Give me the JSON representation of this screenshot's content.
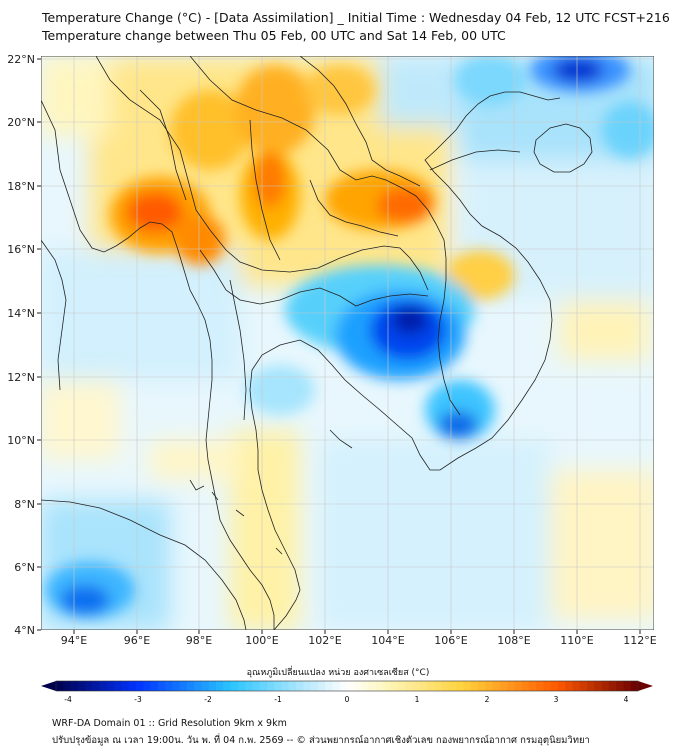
{
  "title_line1": "Temperature Change (°C) - [Data Assimilation] _ Initial Time : Wednesday 04 Feb, 12 UTC FCST+216",
  "title_line2": "Temperature change between Thu 05 Feb, 00 UTC and Sat 14 Feb, 00 UTC",
  "lon_labels": [
    "94°E",
    "96°E",
    "98°E",
    "100°E",
    "102°E",
    "104°E",
    "106°E",
    "108°E",
    "110°E",
    "112°E"
  ],
  "lat_labels": [
    "22°N",
    "20°N",
    "18°N",
    "16°N",
    "14°N",
    "12°N",
    "10°N",
    "8°N",
    "6°N",
    "4°N"
  ],
  "colorbar": {
    "title": "อุณหภูมิเปลี่ยนแปลง หน่วย องศาเซลเซียส (°C)",
    "tick_labels": [
      "-4",
      "-3",
      "-2",
      "-1",
      "0",
      "1",
      "2",
      "3",
      "4"
    ],
    "colors": {
      "min": "#00004c",
      "cold": "#0033ff",
      "cool": "#29c5ff",
      "neutral_low": "#cdeffd",
      "neutral": "#ffffff",
      "neutral_high": "#fff8c4",
      "warm": "#ffd23c",
      "hot": "#ff5a00",
      "max": "#6a0000"
    }
  },
  "footer_line1": "WRF-DA Domain 01 :: Grid Resolution 9km x 9km",
  "footer_line2": "ปรับปรุงข้อมูล ณ เวลา 19:00น. วัน พ. ที่ 04 ก.พ. 2569 -- © ส่วนพยากรณ์อากาศเชิงตัวเลข กองพยากรณ์อากาศ กรมอุตุนิยมวิทยา"
}
